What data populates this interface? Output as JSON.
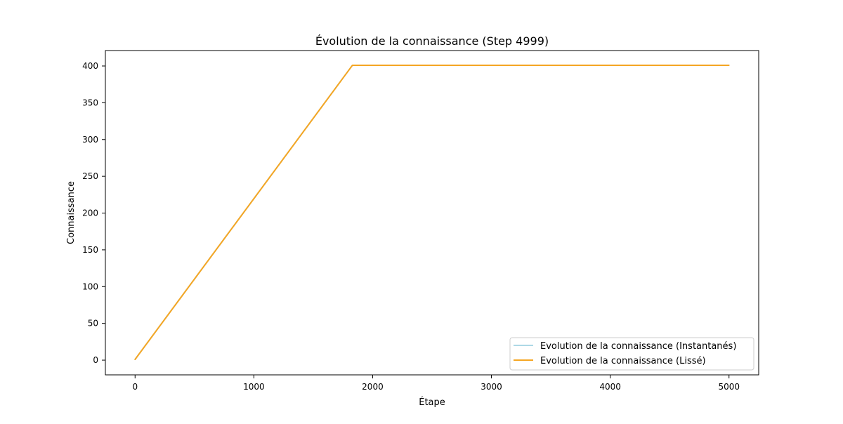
{
  "chart_data": {
    "type": "line",
    "title": "Évolution de la connaissance (Step 4999)",
    "xlabel": "Étape",
    "ylabel": "Connaissance",
    "xlim": [
      -250,
      5250
    ],
    "ylim": [
      -20,
      421
    ],
    "x_ticks": [
      0,
      1000,
      2000,
      3000,
      4000,
      5000
    ],
    "y_ticks": [
      0,
      50,
      100,
      150,
      200,
      250,
      300,
      350,
      400
    ],
    "grid": false,
    "legend_position": "lower right",
    "series": [
      {
        "name": "Evolution de la connaissance (Instantanés)",
        "color": "#add8e6",
        "x": [
          0,
          1830,
          4999
        ],
        "y": [
          1,
          401,
          401
        ]
      },
      {
        "name": "Evolution de la connaissance (Lissé)",
        "color": "#f5a623",
        "x": [
          0,
          1830,
          4999
        ],
        "y": [
          1,
          401,
          401
        ]
      }
    ]
  }
}
